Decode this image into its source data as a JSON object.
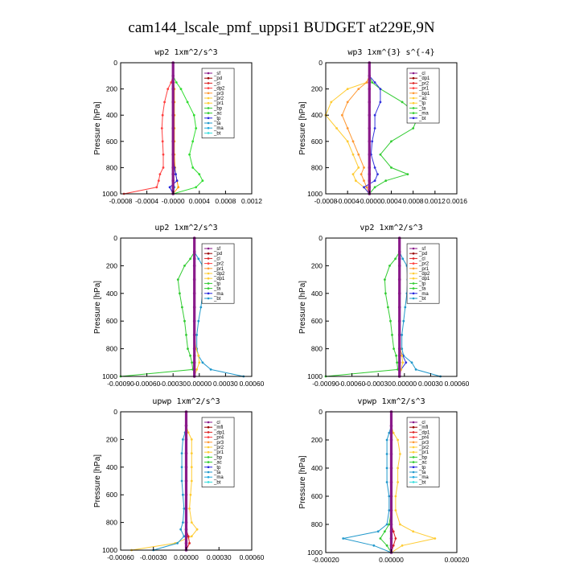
{
  "figure": {
    "title": "cam144_lscale_pmf_uppsi1  BUDGET at229E,9N"
  },
  "chart_data": [
    {
      "type": "line",
      "title": "wp2   1xm^2/s^3",
      "ylabel": "Pressure [hPa]",
      "xlim": [
        -0.0008,
        0.0012
      ],
      "ylim": [
        1000,
        0
      ],
      "xticks": [
        "-0.0008",
        "-0.0004",
        "-0.0000",
        "0.0004",
        "0.0008",
        "0.0012"
      ],
      "yticks": [
        "0",
        "200",
        "400",
        "600",
        "800",
        "1000"
      ],
      "y": [
        0,
        100,
        150,
        200,
        300,
        400,
        500,
        600,
        700,
        800,
        850,
        900,
        950,
        1000
      ],
      "legend_labels": [
        "_sf",
        "_pd",
        "_cl",
        "_dp2",
        "_pr3",
        "_pr2",
        "_pr1",
        "_bp",
        "_ac",
        "_tp",
        "_ta",
        "_ma",
        "_bt"
      ],
      "series": [
        {
          "color": "#ff4040",
          "values": [
            0,
            0,
            -3e-05,
            -8e-05,
            -0.00013,
            -0.00016,
            -0.00017,
            -0.00016,
            -0.00015,
            -0.00015,
            -0.0002,
            -0.00022,
            -0.00025,
            -0.00075
          ]
        },
        {
          "color": "#ff9900",
          "values": [
            0,
            0,
            1e-05,
            2e-05,
            2e-05,
            2e-05,
            2e-05,
            2e-05,
            2e-05,
            3e-05,
            4e-05,
            6e-05,
            8e-05,
            0
          ]
        },
        {
          "color": "#33dd33",
          "values": [
            0,
            0,
            5e-05,
            0.00012,
            0.00022,
            0.00032,
            0.00035,
            0.0003,
            0.00025,
            0.0003,
            0.0004,
            0.00045,
            0.00035,
            0
          ]
        },
        {
          "color": "#2222dd",
          "values": [
            0,
            0,
            0,
            0,
            0,
            0,
            0,
            0,
            0,
            2e-05,
            4e-05,
            6e-05,
            -5e-05,
            0
          ]
        },
        {
          "color": "#22aadd",
          "values": [
            0,
            0,
            0,
            0,
            0,
            0,
            0,
            0,
            0,
            0,
            0,
            0,
            2e-05,
            0
          ]
        },
        {
          "color": "#990000",
          "values": [
            0,
            0,
            0,
            0,
            0,
            0,
            0,
            0,
            0,
            0,
            0,
            0,
            0,
            0
          ]
        },
        {
          "color": "#8a1a8a",
          "values": [
            0,
            0,
            0,
            0,
            0,
            0,
            0,
            0,
            0,
            0,
            0,
            0,
            0,
            0
          ]
        }
      ]
    },
    {
      "type": "line",
      "title": "wp3   1xm^{3} s^{-4}",
      "ylabel": "Pressure [hPa]",
      "xlim": [
        -0.0008,
        0.0016
      ],
      "ylim": [
        1000,
        0
      ],
      "xticks": [
        "-0.0008",
        "-0.0004",
        "-0.0000",
        "0.0004",
        "0.0008",
        "0.0012",
        "0.0016"
      ],
      "yticks": [
        "0",
        "200",
        "400",
        "600",
        "800",
        "1000"
      ],
      "y": [
        0,
        100,
        150,
        200,
        300,
        400,
        500,
        600,
        700,
        800,
        850,
        900,
        950,
        1000
      ],
      "legend_labels": [
        "_cl",
        "_dp1",
        "_pr2",
        "_pr1",
        "_bp1",
        "_ac",
        "_tp",
        "_ta",
        "_ma",
        "_bt"
      ],
      "series": [
        {
          "color": "#ffcc33",
          "values": [
            0,
            0,
            -5e-05,
            -0.0004,
            -0.0007,
            -0.0008,
            -0.0006,
            -0.0004,
            -0.0003,
            -0.0002,
            -0.0003,
            -0.00025,
            -0.0001,
            0
          ]
        },
        {
          "color": "#ff9933",
          "values": [
            0,
            0,
            -5e-05,
            -0.0002,
            -0.0004,
            -0.0005,
            -0.0004,
            -0.0003,
            -0.0002,
            -0.0001,
            -0.00015,
            -0.0001,
            -5e-05,
            0
          ]
        },
        {
          "color": "#33cc33",
          "values": [
            0,
            0,
            5e-05,
            0.0002,
            0.0006,
            0.0009,
            0.0008,
            0.0004,
            0.0002,
            0.0004,
            0.0007,
            0.0003,
            0.0001,
            0
          ]
        },
        {
          "color": "#3333dd",
          "values": [
            0,
            0,
            0.0001,
            0.0002,
            0.0002,
            0.0001,
            0.0001,
            5e-05,
            3e-05,
            0.0001,
            0.00015,
            0.0001,
            -0.0001,
            0
          ]
        },
        {
          "color": "#dd2222",
          "values": [
            0,
            0,
            0,
            0,
            0,
            0,
            0,
            0,
            0,
            0,
            0,
            0,
            0,
            0
          ]
        },
        {
          "color": "#8a1a8a",
          "values": [
            0,
            0,
            0,
            0,
            0,
            0,
            0,
            0,
            0,
            0,
            0,
            0,
            0,
            0
          ]
        }
      ]
    },
    {
      "type": "line",
      "title": "up2   1xm^2/s^3",
      "ylabel": "Pressure [hPa]",
      "xlim": [
        -0.0009,
        0.0007
      ],
      "ylim": [
        1000,
        0
      ],
      "xticks": [
        "-0.00090",
        "-0.00060",
        "-0.00030",
        "0.00000",
        "0.00030",
        "0.00060"
      ],
      "yticks": [
        "0",
        "200",
        "400",
        "600",
        "800",
        "1000"
      ],
      "y": [
        0,
        100,
        150,
        200,
        300,
        400,
        500,
        600,
        700,
        800,
        850,
        900,
        950,
        1000
      ],
      "legend_labels": [
        "_sf",
        "_pd",
        "_cl",
        "_pr2",
        "_pr1",
        "_dp2",
        "_dp1",
        "_tp",
        "_ta",
        "_ma",
        "_bt"
      ],
      "series": [
        {
          "color": "#33cc33",
          "values": [
            0,
            0,
            -5e-05,
            -0.00012,
            -0.0002,
            -0.00018,
            -0.00015,
            -0.00012,
            -0.0001,
            -8e-05,
            -5e-05,
            -3e-05,
            -2e-05,
            -0.0009
          ]
        },
        {
          "color": "#2299cc",
          "values": [
            0,
            0,
            5e-05,
            0.0001,
            0.00012,
            0.0001,
            8e-05,
            5e-05,
            3e-05,
            3e-05,
            5e-05,
            0.0001,
            0.0002,
            0.0006
          ]
        },
        {
          "color": "#ffcc33",
          "values": [
            0,
            0,
            0,
            0,
            0,
            0,
            0,
            0,
            0,
            2e-05,
            5e-05,
            6e-05,
            3e-05,
            0
          ]
        },
        {
          "color": "#dd2222",
          "values": [
            0,
            0,
            0,
            0,
            0,
            0,
            0,
            0,
            0,
            0,
            0,
            0,
            0,
            0
          ]
        },
        {
          "color": "#8a1a8a",
          "values": [
            0,
            0,
            0,
            0,
            0,
            0,
            0,
            0,
            0,
            0,
            0,
            0,
            0,
            0
          ]
        }
      ]
    },
    {
      "type": "line",
      "title": "vp2   1xm^2/s^3",
      "ylabel": "Pressure [hPa]",
      "xlim": [
        -0.0009,
        0.0007
      ],
      "ylim": [
        1000,
        0
      ],
      "xticks": [
        "-0.00090",
        "-0.00060",
        "-0.00030",
        "0.00000",
        "0.00030",
        "0.00060"
      ],
      "yticks": [
        "0",
        "200",
        "400",
        "600",
        "800",
        "1000"
      ],
      "y": [
        0,
        100,
        150,
        200,
        300,
        400,
        500,
        600,
        700,
        800,
        850,
        900,
        950,
        1000
      ],
      "legend_labels": [
        "_sf",
        "_pd",
        "_cl",
        "_pr2",
        "_pr1",
        "_dp2",
        "_dp1",
        "_tp",
        "_ta",
        "_ma",
        "_bt"
      ],
      "series": [
        {
          "color": "#33cc33",
          "values": [
            0,
            0,
            -5e-05,
            -0.00012,
            -0.00018,
            -0.00017,
            -0.00014,
            -0.00011,
            -9e-05,
            -7e-05,
            -4e-05,
            -3e-05,
            -2e-05,
            -0.0009
          ]
        },
        {
          "color": "#2299cc",
          "values": [
            0,
            0,
            4e-05,
            9e-05,
            0.0001,
            9e-05,
            7e-05,
            5e-05,
            3e-05,
            3e-05,
            5e-05,
            0.00015,
            0.0002,
            0.0005
          ]
        },
        {
          "color": "#3333dd",
          "values": [
            0,
            0,
            0,
            0,
            0,
            0,
            0,
            0,
            0,
            0,
            4e-05,
            8e-05,
            2e-05,
            0
          ]
        },
        {
          "color": "#ffcc33",
          "values": [
            0,
            0,
            0,
            0,
            0,
            0,
            0,
            0,
            0,
            1e-05,
            3e-05,
            4e-05,
            2e-05,
            0
          ]
        },
        {
          "color": "#dd2222",
          "values": [
            0,
            0,
            0,
            0,
            0,
            0,
            0,
            0,
            0,
            0,
            0,
            0,
            0,
            0
          ]
        },
        {
          "color": "#8a1a8a",
          "values": [
            0,
            0,
            0,
            0,
            0,
            0,
            0,
            0,
            0,
            0,
            0,
            0,
            0,
            0
          ]
        }
      ]
    },
    {
      "type": "line",
      "title": "upwp   1xm^2/s^3",
      "ylabel": "Pressure [hPa]",
      "xlim": [
        -0.0006,
        0.0006
      ],
      "ylim": [
        1000,
        0
      ],
      "xticks": [
        "-0.00060",
        "-0.00030",
        "0.00000",
        "0.00030",
        "0.00060"
      ],
      "yticks": [
        "0",
        "200",
        "400",
        "600",
        "800",
        "1000"
      ],
      "y": [
        0,
        100,
        150,
        200,
        300,
        400,
        500,
        600,
        700,
        800,
        850,
        900,
        950,
        1000
      ],
      "legend_labels": [
        "_cl",
        "_mfl",
        "_dp1",
        "_pr4",
        "_pr3",
        "_pr2",
        "_pr1",
        "_bp",
        "_ac",
        "_tp",
        "_ta",
        "_ma",
        "_bt"
      ],
      "series": [
        {
          "color": "#ffcc33",
          "values": [
            0,
            0,
            2e-05,
            5e-05,
            5e-05,
            5e-05,
            5e-05,
            4e-05,
            3e-05,
            5e-05,
            0.0001,
            5e-05,
            -0.0001,
            -0.0005
          ]
        },
        {
          "color": "#2299cc",
          "values": [
            0,
            0,
            -1e-05,
            -3e-05,
            -4e-05,
            -4e-05,
            -4e-05,
            -3e-05,
            -2e-05,
            -3e-05,
            -5e-05,
            -2e-05,
            -8e-05,
            -0.0003
          ]
        },
        {
          "color": "#dd2222",
          "values": [
            0,
            0,
            0,
            0,
            0,
            0,
            0,
            0,
            0,
            0,
            0,
            2e-05,
            3e-05,
            0
          ]
        },
        {
          "color": "#8a1a8a",
          "values": [
            0,
            0,
            0,
            0,
            0,
            0,
            0,
            0,
            0,
            0,
            0,
            0,
            0,
            0
          ]
        }
      ]
    },
    {
      "type": "line",
      "title": "vpwp   1xm^2/s^3",
      "ylabel": "Pressure [hPa]",
      "xlim": [
        -0.0003,
        0.0003
      ],
      "ylim": [
        1000,
        0
      ],
      "xticks": [
        "-0.00020",
        "0.00000",
        "0.00020"
      ],
      "yticks": [
        "0",
        "200",
        "400",
        "600",
        "800",
        "1000"
      ],
      "y": [
        0,
        100,
        150,
        200,
        300,
        400,
        500,
        600,
        700,
        800,
        850,
        900,
        950,
        1000
      ],
      "legend_labels": [
        "_cl",
        "_mfl",
        "_dp1",
        "_pr4",
        "_pr3",
        "_pr2",
        "_pr1",
        "_bp",
        "_ac",
        "_tp",
        "_ta",
        "_ma",
        "_bt"
      ],
      "series": [
        {
          "color": "#ffcc33",
          "values": [
            0,
            0,
            1e-05,
            3e-05,
            4e-05,
            3e-05,
            3e-05,
            2e-05,
            2e-05,
            4e-05,
            0.0001,
            0.0002,
            5e-05,
            0
          ]
        },
        {
          "color": "#2299cc",
          "values": [
            0,
            0,
            -1e-05,
            -2e-05,
            -2e-05,
            -2e-05,
            -2e-05,
            -1e-05,
            -1e-05,
            -2e-05,
            -6e-05,
            -0.00022,
            -8e-05,
            0
          ]
        },
        {
          "color": "#33cc33",
          "values": [
            0,
            0,
            0,
            0,
            0,
            0,
            0,
            0,
            0,
            -1e-05,
            -3e-05,
            -5e-05,
            -2e-05,
            0
          ]
        },
        {
          "color": "#dd2222",
          "values": [
            0,
            0,
            0,
            0,
            0,
            0,
            0,
            0,
            0,
            0,
            1e-05,
            2e-05,
            1e-05,
            0
          ]
        },
        {
          "color": "#8a1a8a",
          "values": [
            0,
            0,
            0,
            0,
            0,
            0,
            0,
            0,
            0,
            0,
            0,
            0,
            0,
            0
          ]
        }
      ]
    }
  ]
}
